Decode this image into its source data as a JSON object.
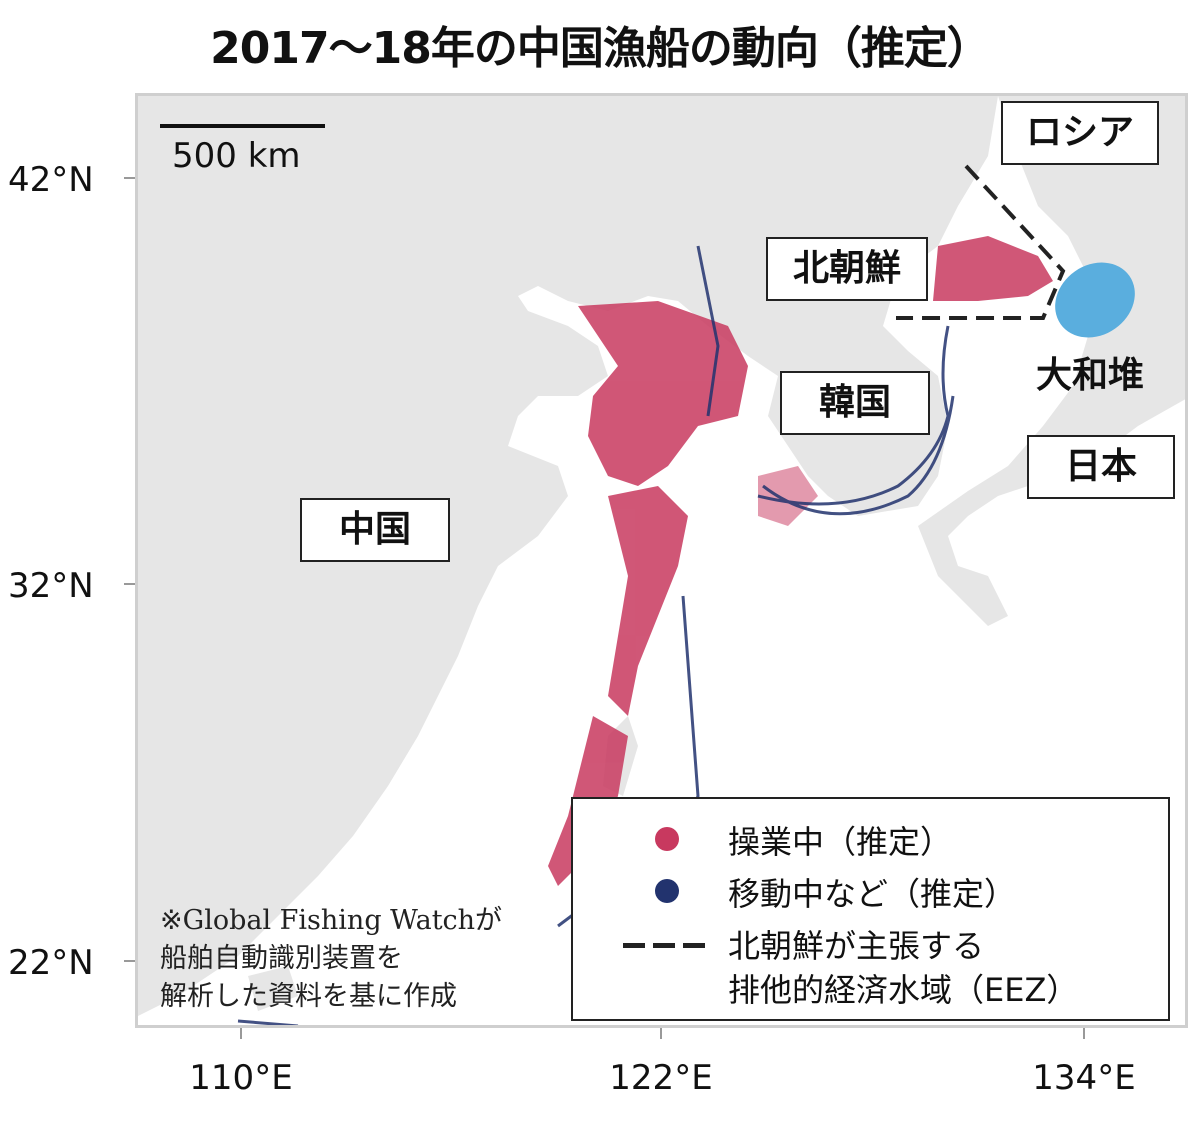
{
  "title": "2017〜18年の中国漁船の動向（推定）",
  "scale": {
    "label": "500 km"
  },
  "axes": {
    "latitude_labels": [
      "42°N",
      "32°N",
      "22°N"
    ],
    "longitude_labels": [
      "110°E",
      "122°E",
      "134°E"
    ]
  },
  "places": {
    "russia": "ロシア",
    "north_korea": "北朝鮮",
    "south_korea": "韓国",
    "china": "中国",
    "japan": "日本",
    "yamato_bank": "大和堆"
  },
  "legend": {
    "operating": "操業中（推定）",
    "moving": "移動中など（推定）",
    "eez_line1": "北朝鮮が主張する",
    "eez_line2": "排他的経済水域（EEZ）"
  },
  "note": {
    "line1": "※Global Fishing Watchが",
    "line2": "船舶自動識別装置を",
    "line3": "解析した資料を基に作成"
  },
  "colors": {
    "operating": "#c8395f",
    "moving": "#22336e",
    "land": "#e6e6e6",
    "yamato_bank": "#5aaede",
    "eez_line": "#222222"
  }
}
